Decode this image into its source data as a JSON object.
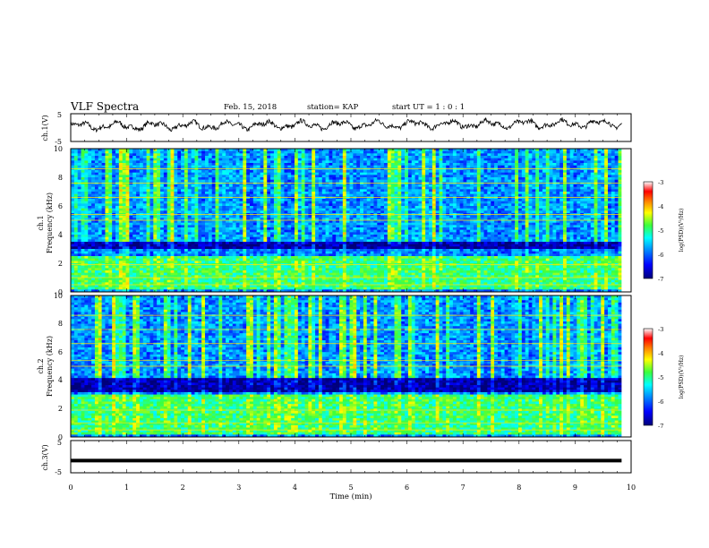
{
  "header": {
    "title": "VLF Spectra",
    "date": "Feb. 15, 2018",
    "station": "station= KAP",
    "start_ut": "start  UT =   1 : 0  : 1"
  },
  "chart_data": [
    {
      "type": "line",
      "panel": "ch1-waveform",
      "ylabel": "ch.1(V)",
      "ylim": [
        -5,
        5
      ],
      "yticks": [
        "5",
        "-5"
      ],
      "x_range_min": [
        0,
        9.83
      ],
      "description_values": "oscillating waveform roughly between -2 V and 2 V",
      "y_start": 0.5,
      "y_end": 1.5
    },
    {
      "type": "heatmap",
      "panel": "ch1-spectrogram",
      "ylabel_channel": "ch.1",
      "ylabel": "Frequency  (kHz)",
      "ylim": [
        0,
        10
      ],
      "yticks": [
        "0",
        "2",
        "4",
        "6",
        "8",
        "10"
      ],
      "x_range_min": [
        0,
        9.83
      ],
      "dark_band_khz": [
        3.0,
        3.5
      ],
      "bright_band_khz": [
        0.2,
        2.5
      ],
      "colorbar": {
        "label": "log(PSD)(V²/Hz)",
        "ticks": [
          "-3",
          "-4",
          "-5",
          "-6",
          "-7"
        ],
        "range": [
          -7,
          -3
        ]
      }
    },
    {
      "type": "heatmap",
      "panel": "ch2-spectrogram",
      "ylabel_channel": "ch.2",
      "ylabel": "Frequency  (kHz)",
      "ylim": [
        0,
        10
      ],
      "yticks": [
        "0",
        "2",
        "4",
        "6",
        "8",
        "10"
      ],
      "x_range_min": [
        0,
        9.83
      ],
      "dark_band_khz": [
        3.2,
        4.2
      ],
      "bright_band_khz": [
        0.2,
        3.0
      ],
      "colorbar": {
        "label": "log(PSD)(V²/Hz)",
        "ticks": [
          "-3",
          "-4",
          "-5",
          "-6",
          "-7"
        ],
        "range": [
          -7,
          -3
        ]
      }
    },
    {
      "type": "line",
      "panel": "ch3-waveform",
      "ylabel": "ch.3(V)",
      "ylim": [
        -5,
        5
      ],
      "yticks": [
        "5",
        "-5"
      ],
      "x_range_min": [
        0,
        9.83
      ],
      "constant_value": -1.2
    }
  ],
  "x_axis": {
    "label": "Time  (min)",
    "ticks": [
      "0",
      "1",
      "2",
      "3",
      "4",
      "5",
      "6",
      "7",
      "8",
      "9",
      "10"
    ],
    "range": [
      0,
      10
    ]
  },
  "colors": {
    "colormap": [
      "#00007a",
      "#0000ff",
      "#0090ff",
      "#00ffff",
      "#3cff3c",
      "#ffff00",
      "#ff7f00",
      "#ff0000",
      "#ffffff"
    ],
    "waveform": "#000000"
  }
}
